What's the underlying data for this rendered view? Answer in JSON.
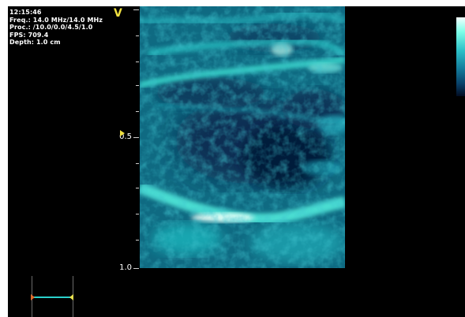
{
  "header": {
    "time": "12:15:46",
    "frequency": "Freq.: 14.0 MHz/14.0 MHz",
    "processing": "Proc.: /10.0/0.0/4.5/1.0",
    "fps": "FPS: 709.4",
    "depth": "Depth: 1.0 cm"
  },
  "orientation_marker": "V",
  "depth_axis": {
    "labels": [
      "0.5",
      "1.0"
    ]
  },
  "icons": {
    "focus_marker": "triangle-right-icon",
    "caliper": "caliper-measurement-icon"
  },
  "colors": {
    "background": "#000000",
    "marker": "#f0e040",
    "scan_base": "#0e5e78",
    "scan_bright": "#7fffe8",
    "caliper_line": "#2ad0cc"
  }
}
